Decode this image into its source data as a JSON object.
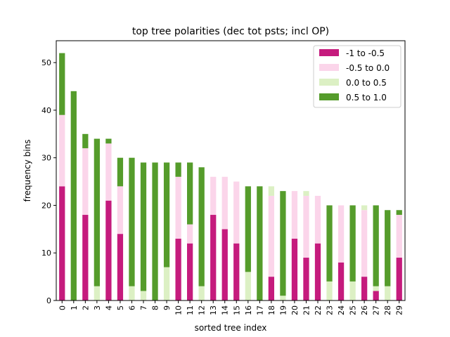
{
  "chart_data": {
    "type": "bar",
    "stacked": true,
    "title": "top tree polarities (dec tot psts; incl OP)",
    "xlabel": "sorted tree index",
    "ylabel": "frequency bins",
    "ylim": [
      0,
      54.6
    ],
    "yticks": [
      0,
      10,
      20,
      30,
      40,
      50
    ],
    "categories": [
      "0",
      "1",
      "2",
      "3",
      "4",
      "5",
      "6",
      "7",
      "8",
      "9",
      "10",
      "11",
      "12",
      "13",
      "14",
      "15",
      "16",
      "17",
      "18",
      "19",
      "20",
      "21",
      "22",
      "23",
      "24",
      "25",
      "26",
      "27",
      "28",
      "29"
    ],
    "legend_position": "top-right",
    "series": [
      {
        "name": "-1 to -0.5",
        "color": "#c51b7d",
        "values": [
          24,
          0,
          18,
          0,
          21,
          14,
          0,
          0,
          0,
          0,
          13,
          12,
          0,
          18,
          15,
          12,
          0,
          0,
          5,
          0,
          13,
          9,
          12,
          0,
          8,
          0,
          5,
          2,
          0,
          9
        ]
      },
      {
        "name": "-0.5 to 0.0",
        "color": "#fbd5ea",
        "values": [
          15,
          0,
          14,
          0,
          12,
          10,
          0,
          0,
          0,
          0,
          13,
          4,
          0,
          8,
          11,
          13,
          0,
          0,
          17,
          0,
          10,
          13,
          10,
          0,
          12,
          0,
          14,
          0,
          0,
          9
        ]
      },
      {
        "name": "0.0 to 0.5",
        "color": "#dcf0c4",
        "values": [
          0,
          0,
          0,
          3,
          0,
          0,
          3,
          2,
          0,
          7,
          0,
          0,
          3,
          0,
          0,
          0,
          6,
          0,
          2,
          1,
          0,
          1,
          0,
          4,
          0,
          4,
          1,
          1,
          3,
          0
        ]
      },
      {
        "name": "0.5 to 1.0",
        "color": "#559c2b",
        "values": [
          13,
          44,
          3,
          31,
          1,
          6,
          27,
          27,
          29,
          22,
          3,
          13,
          25,
          0,
          0,
          0,
          18,
          24,
          0,
          22,
          0,
          0,
          0,
          16,
          0,
          16,
          0,
          17,
          16,
          1
        ]
      }
    ]
  }
}
